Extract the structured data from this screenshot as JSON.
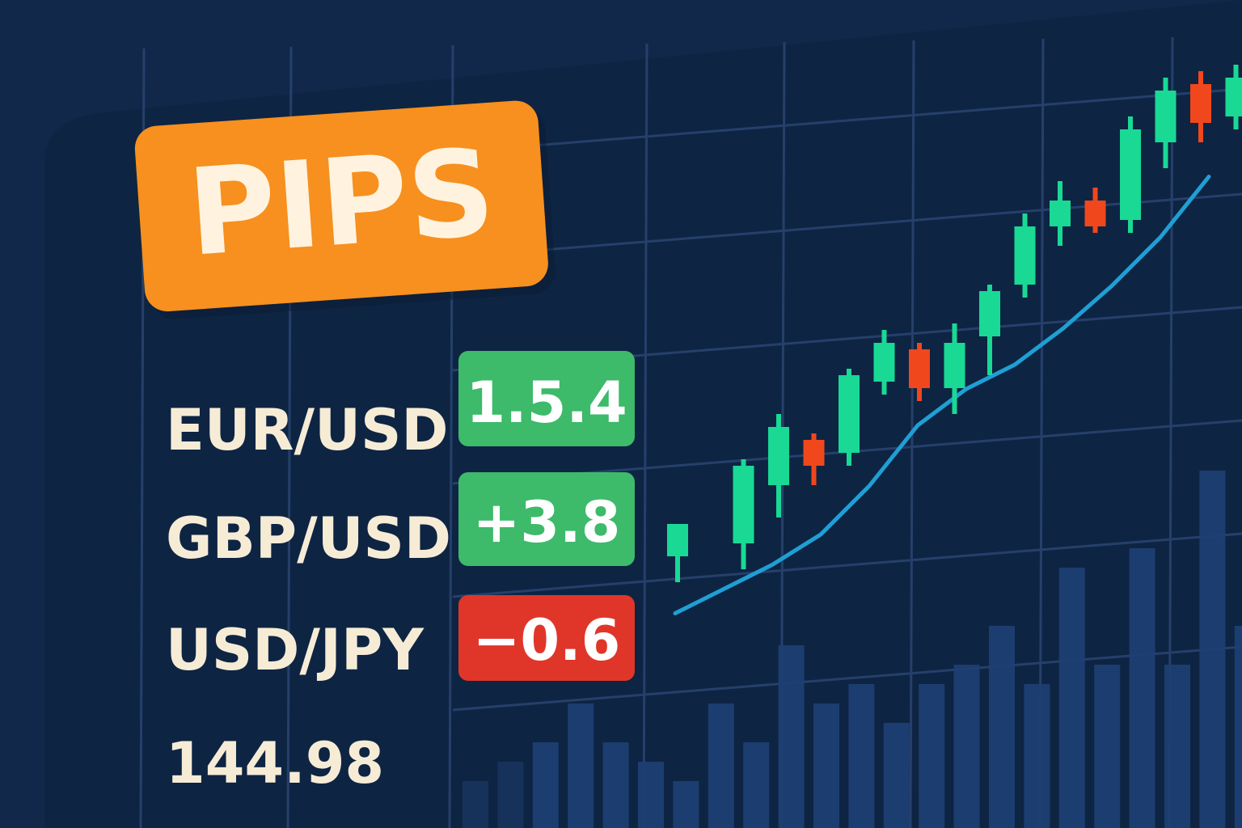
{
  "header": {
    "title": "PIPS"
  },
  "quotes": [
    {
      "pair": "EUR/USD",
      "change": "1.5.4",
      "status": "up"
    },
    {
      "pair": "GBP/USD",
      "change": "+3.8",
      "status": "up"
    },
    {
      "pair": "USD/JPY",
      "change": "−0.6",
      "status": "down"
    }
  ],
  "price": {
    "value": "144.98"
  },
  "colors": {
    "background": "#12284a",
    "panel": "#0e2443",
    "grid": "#25406a",
    "title_badge": "#f7901e",
    "positive": "#3dba6a",
    "negative": "#e0362a",
    "bull_candle": "#19d995",
    "bear_candle": "#f0471c",
    "trend_line": "#1f9fd4",
    "volume_bar": "#1d3f72",
    "label_text": "#f6ecd6"
  },
  "chart_data": {
    "type": "candlestick",
    "title": "",
    "xlabel": "",
    "ylabel": "",
    "grid": true,
    "candles": [
      {
        "open": 8,
        "high": 18,
        "low": 0,
        "close": 18
      },
      {
        "open": 12,
        "high": 38,
        "low": 4,
        "close": 36
      },
      {
        "open": 30,
        "high": 52,
        "low": 20,
        "close": 48
      },
      {
        "open": 44,
        "high": 46,
        "low": 30,
        "close": 36
      },
      {
        "open": 40,
        "high": 66,
        "low": 36,
        "close": 64
      },
      {
        "open": 62,
        "high": 78,
        "low": 58,
        "close": 74
      },
      {
        "open": 72,
        "high": 74,
        "low": 56,
        "close": 60
      },
      {
        "open": 60,
        "high": 80,
        "low": 52,
        "close": 74
      },
      {
        "open": 76,
        "high": 92,
        "low": 64,
        "close": 90
      },
      {
        "open": 92,
        "high": 114,
        "low": 88,
        "close": 110
      },
      {
        "open": 110,
        "high": 124,
        "low": 104,
        "close": 118
      },
      {
        "open": 118,
        "high": 122,
        "low": 108,
        "close": 110
      },
      {
        "open": 112,
        "high": 144,
        "low": 108,
        "close": 140
      },
      {
        "open": 136,
        "high": 156,
        "low": 128,
        "close": 152
      },
      {
        "open": 154,
        "high": 158,
        "low": 136,
        "close": 142
      },
      {
        "open": 144,
        "high": 160,
        "low": 140,
        "close": 156
      }
    ],
    "trend_line": [
      2,
      10,
      18,
      28,
      44,
      64,
      76,
      84,
      96,
      110,
      126,
      146
    ]
  },
  "volume_data": {
    "values": [
      2,
      3,
      4,
      6,
      4,
      3,
      2,
      6,
      4,
      9,
      6,
      7,
      5,
      7,
      8,
      10,
      7,
      13,
      8,
      14,
      8,
      18,
      10,
      13
    ]
  }
}
